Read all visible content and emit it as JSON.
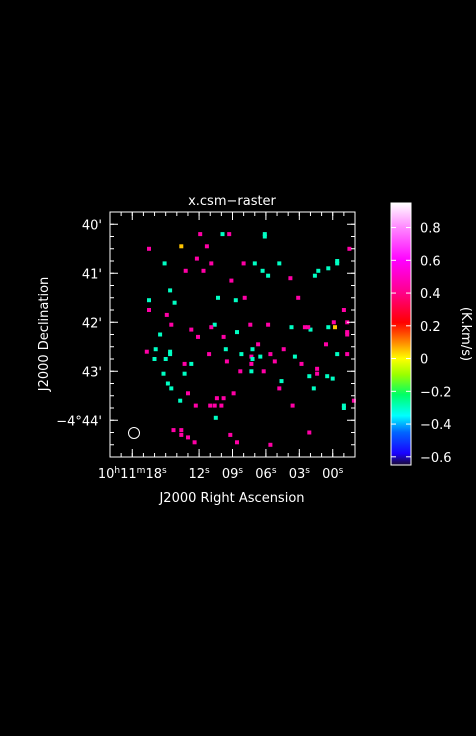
{
  "chart_data": {
    "type": "heatmap",
    "title": "x.csm−raster",
    "xlabel": "J2000 Right Ascension",
    "ylabel": "J2000 Declination",
    "colorbar_label": "(K.km/s)",
    "x_ticks": [
      {
        "main": "10",
        "sup1": "h",
        "mid": "11",
        "sup2": "m",
        "tail": "18",
        "sup3": "s",
        "v": -18
      },
      {
        "main": "",
        "sup1": "",
        "mid": "",
        "sup2": "",
        "tail": "12",
        "sup3": "s",
        "v": -12
      },
      {
        "main": "",
        "sup1": "",
        "mid": "",
        "sup2": "",
        "tail": "09",
        "sup3": "s",
        "v": -9
      },
      {
        "main": "",
        "sup1": "",
        "mid": "",
        "sup2": "",
        "tail": "06",
        "sup3": "s",
        "v": -6
      },
      {
        "main": "",
        "sup1": "",
        "mid": "",
        "sup2": "",
        "tail": "03",
        "sup3": "s",
        "v": -3
      },
      {
        "main": "",
        "sup1": "",
        "mid": "",
        "sup2": "",
        "tail": "00",
        "sup3": "s",
        "v": 0
      }
    ],
    "y_ticks": [
      {
        "text": "40'",
        "v": 40
      },
      {
        "text": "41'",
        "v": 41
      },
      {
        "text": "42'",
        "v": 42
      },
      {
        "text": "43'",
        "v": 43
      },
      {
        "text": "−4°44'",
        "v": 44
      }
    ],
    "xlim_sec": [
      -20,
      2
    ],
    "ylim_arcmin_south": [
      39.75,
      44.75
    ],
    "colorbar": {
      "range": [
        -0.65,
        0.95
      ],
      "ticks": [
        0.8,
        0.6,
        0.4,
        0.2,
        0,
        -0.2,
        -0.4,
        -0.6
      ],
      "tick_labels": [
        "0.8",
        "0.6",
        "0.4",
        "0.2",
        "0",
        "−0.2",
        "−0.4",
        "−0.6"
      ],
      "stops": [
        {
          "v": -0.65,
          "color": "#1a0a30"
        },
        {
          "v": -0.58,
          "color": "#1a00ff"
        },
        {
          "v": -0.45,
          "color": "#0066ff"
        },
        {
          "v": -0.35,
          "color": "#00ffff"
        },
        {
          "v": -0.22,
          "color": "#00ff66"
        },
        {
          "v": -0.1,
          "color": "#99ff00"
        },
        {
          "v": 0.0,
          "color": "#ffff00"
        },
        {
          "v": 0.1,
          "color": "#ff8800"
        },
        {
          "v": 0.22,
          "color": "#ff0000"
        },
        {
          "v": 0.4,
          "color": "#ff0088"
        },
        {
          "v": 0.6,
          "color": "#ff00ff"
        },
        {
          "v": 0.8,
          "color": "#ff88ff"
        },
        {
          "v": 0.95,
          "color": "#ffffff"
        }
      ]
    },
    "pixel_values_note": "",
    "pixels": [
      {
        "x": -16.5,
        "y": 40.5,
        "v": 0.45
      },
      {
        "x": -13.6,
        "y": 40.45,
        "v": 0.05
      },
      {
        "x": -11.9,
        "y": 40.2,
        "v": 0.45
      },
      {
        "x": -9.9,
        "y": 40.2,
        "v": -0.3
      },
      {
        "x": -9.3,
        "y": 40.2,
        "v": 0.45
      },
      {
        "x": -6.1,
        "y": 40.2,
        "v": -0.3
      },
      {
        "x": -6.1,
        "y": 40.25,
        "v": -0.3
      },
      {
        "x": -11.3,
        "y": 40.45,
        "v": 0.45
      },
      {
        "x": -12.2,
        "y": 40.7,
        "v": 0.45
      },
      {
        "x": -15.1,
        "y": 40.8,
        "v": -0.3
      },
      {
        "x": -10.9,
        "y": 40.8,
        "v": 0.45
      },
      {
        "x": -8.0,
        "y": 40.8,
        "v": 0.45
      },
      {
        "x": -7.0,
        "y": 40.8,
        "v": -0.3
      },
      {
        "x": -4.8,
        "y": 40.8,
        "v": -0.3
      },
      {
        "x": 1.5,
        "y": 40.5,
        "v": 0.45
      },
      {
        "x": 0.4,
        "y": 40.75,
        "v": -0.3
      },
      {
        "x": 0.4,
        "y": 40.8,
        "v": -0.3
      },
      {
        "x": -0.4,
        "y": 40.9,
        "v": -0.3
      },
      {
        "x": -13.2,
        "y": 40.95,
        "v": 0.45
      },
      {
        "x": -11.6,
        "y": 40.95,
        "v": 0.45
      },
      {
        "x": -6.3,
        "y": 40.95,
        "v": -0.3
      },
      {
        "x": -1.3,
        "y": 40.95,
        "v": -0.3
      },
      {
        "x": -9.1,
        "y": 41.15,
        "v": 0.45
      },
      {
        "x": -5.8,
        "y": 41.05,
        "v": -0.3
      },
      {
        "x": -3.8,
        "y": 41.1,
        "v": 0.45
      },
      {
        "x": -1.6,
        "y": 41.05,
        "v": -0.3
      },
      {
        "x": -14.6,
        "y": 41.35,
        "v": -0.3
      },
      {
        "x": -10.3,
        "y": 41.5,
        "v": -0.3
      },
      {
        "x": -7.9,
        "y": 41.5,
        "v": 0.45
      },
      {
        "x": -3.1,
        "y": 41.5,
        "v": 0.45
      },
      {
        "x": -16.5,
        "y": 41.55,
        "v": -0.3
      },
      {
        "x": -14.2,
        "y": 41.6,
        "v": -0.3
      },
      {
        "x": -8.7,
        "y": 41.55,
        "v": -0.3
      },
      {
        "x": 1.0,
        "y": 41.75,
        "v": 0.45
      },
      {
        "x": -16.5,
        "y": 41.75,
        "v": 0.45
      },
      {
        "x": -14.9,
        "y": 41.85,
        "v": 0.45
      },
      {
        "x": -14.5,
        "y": 42.05,
        "v": 0.45
      },
      {
        "x": -12.7,
        "y": 42.15,
        "v": 0.45
      },
      {
        "x": -10.6,
        "y": 42.05,
        "v": -0.3
      },
      {
        "x": -10.9,
        "y": 42.1,
        "v": 0.45
      },
      {
        "x": -7.4,
        "y": 42.05,
        "v": 0.45
      },
      {
        "x": -5.8,
        "y": 42.05,
        "v": 0.45
      },
      {
        "x": -3.7,
        "y": 42.1,
        "v": -0.3
      },
      {
        "x": -2.0,
        "y": 42.15,
        "v": -0.3
      },
      {
        "x": -0.4,
        "y": 42.1,
        "v": -0.3
      },
      {
        "x": 0.2,
        "y": 42.1,
        "v": 0.05
      },
      {
        "x": -2.5,
        "y": 42.1,
        "v": 0.45
      },
      {
        "x": -2.2,
        "y": 42.1,
        "v": 0.45
      },
      {
        "x": 0.1,
        "y": 42.0,
        "v": 0.45
      },
      {
        "x": 1.3,
        "y": 42.0,
        "v": 0.45
      },
      {
        "x": 1.3,
        "y": 42.2,
        "v": 0.45
      },
      {
        "x": 1.3,
        "y": 42.25,
        "v": 0.45
      },
      {
        "x": -8.6,
        "y": 42.2,
        "v": -0.3
      },
      {
        "x": -15.5,
        "y": 42.25,
        "v": -0.3
      },
      {
        "x": -12.1,
        "y": 42.3,
        "v": 0.45
      },
      {
        "x": -9.8,
        "y": 42.3,
        "v": 0.45
      },
      {
        "x": -6.7,
        "y": 42.45,
        "v": 0.45
      },
      {
        "x": -0.6,
        "y": 42.45,
        "v": 0.45
      },
      {
        "x": -7.2,
        "y": 42.55,
        "v": -0.3
      },
      {
        "x": -9.6,
        "y": 42.55,
        "v": -0.3
      },
      {
        "x": -4.4,
        "y": 42.55,
        "v": 0.45
      },
      {
        "x": -16.7,
        "y": 42.6,
        "v": 0.45
      },
      {
        "x": -15.9,
        "y": 42.55,
        "v": -0.3
      },
      {
        "x": -14.6,
        "y": 42.6,
        "v": -0.3
      },
      {
        "x": -14.6,
        "y": 42.65,
        "v": -0.3
      },
      {
        "x": -11.1,
        "y": 42.65,
        "v": 0.45
      },
      {
        "x": -8.2,
        "y": 42.65,
        "v": -0.3
      },
      {
        "x": -7.3,
        "y": 42.7,
        "v": 0.45
      },
      {
        "x": -6.5,
        "y": 42.7,
        "v": -0.3
      },
      {
        "x": -5.6,
        "y": 42.65,
        "v": 0.45
      },
      {
        "x": -3.4,
        "y": 42.7,
        "v": -0.3
      },
      {
        "x": 0.4,
        "y": 42.65,
        "v": -0.3
      },
      {
        "x": 1.3,
        "y": 42.65,
        "v": 0.45
      },
      {
        "x": -7.3,
        "y": 42.85,
        "v": 0.45
      },
      {
        "x": -7.2,
        "y": 42.75,
        "v": -0.3
      },
      {
        "x": -9.5,
        "y": 42.8,
        "v": 0.45
      },
      {
        "x": -12.7,
        "y": 42.85,
        "v": -0.3
      },
      {
        "x": -15.0,
        "y": 42.75,
        "v": -0.3
      },
      {
        "x": -16.0,
        "y": 42.75,
        "v": -0.3
      },
      {
        "x": -13.3,
        "y": 42.85,
        "v": 0.45
      },
      {
        "x": -5.2,
        "y": 42.8,
        "v": 0.45
      },
      {
        "x": -2.8,
        "y": 42.85,
        "v": 0.45
      },
      {
        "x": -6.2,
        "y": 43.0,
        "v": 0.45
      },
      {
        "x": -7.3,
        "y": 43.0,
        "v": -0.3
      },
      {
        "x": -8.3,
        "y": 43.0,
        "v": 0.45
      },
      {
        "x": -1.4,
        "y": 42.95,
        "v": 0.45
      },
      {
        "x": -1.4,
        "y": 43.05,
        "v": 0.45
      },
      {
        "x": -15.2,
        "y": 43.05,
        "v": -0.3
      },
      {
        "x": -13.3,
        "y": 43.05,
        "v": -0.3
      },
      {
        "x": -0.5,
        "y": 43.1,
        "v": -0.3
      },
      {
        "x": -4.6,
        "y": 43.2,
        "v": -0.3
      },
      {
        "x": -2.1,
        "y": 43.1,
        "v": -0.3
      },
      {
        "x": 0.0,
        "y": 43.15,
        "v": -0.3
      },
      {
        "x": -14.8,
        "y": 43.25,
        "v": -0.3
      },
      {
        "x": -14.5,
        "y": 43.35,
        "v": -0.3
      },
      {
        "x": -4.8,
        "y": 43.35,
        "v": 0.45
      },
      {
        "x": -1.7,
        "y": 43.35,
        "v": -0.3
      },
      {
        "x": -13.0,
        "y": 43.45,
        "v": 0.45
      },
      {
        "x": -10.4,
        "y": 43.55,
        "v": 0.45
      },
      {
        "x": -9.8,
        "y": 43.55,
        "v": 0.45
      },
      {
        "x": -8.9,
        "y": 43.45,
        "v": 0.45
      },
      {
        "x": -13.7,
        "y": 43.6,
        "v": -0.3
      },
      {
        "x": -10.6,
        "y": 43.7,
        "v": 0.45
      },
      {
        "x": -11.0,
        "y": 43.7,
        "v": 0.45
      },
      {
        "x": -10.0,
        "y": 43.7,
        "v": 0.45
      },
      {
        "x": -12.3,
        "y": 43.7,
        "v": 0.45
      },
      {
        "x": -3.6,
        "y": 43.7,
        "v": 0.45
      },
      {
        "x": 1.0,
        "y": 43.7,
        "v": -0.3
      },
      {
        "x": 1.0,
        "y": 43.75,
        "v": -0.3
      },
      {
        "x": 1.9,
        "y": 43.6,
        "v": 0.45
      },
      {
        "x": -10.5,
        "y": 43.95,
        "v": -0.3
      },
      {
        "x": -14.3,
        "y": 44.2,
        "v": 0.45
      },
      {
        "x": -13.6,
        "y": 44.2,
        "v": 0.45
      },
      {
        "x": -13.0,
        "y": 44.35,
        "v": 0.45
      },
      {
        "x": -12.4,
        "y": 44.45,
        "v": 0.45
      },
      {
        "x": -9.2,
        "y": 44.3,
        "v": 0.45
      },
      {
        "x": -8.6,
        "y": 44.45,
        "v": 0.45
      },
      {
        "x": -5.6,
        "y": 44.5,
        "v": 0.45
      },
      {
        "x": -2.1,
        "y": 44.25,
        "v": 0.45
      },
      {
        "x": -13.6,
        "y": 44.3,
        "v": 0.45
      }
    ]
  }
}
